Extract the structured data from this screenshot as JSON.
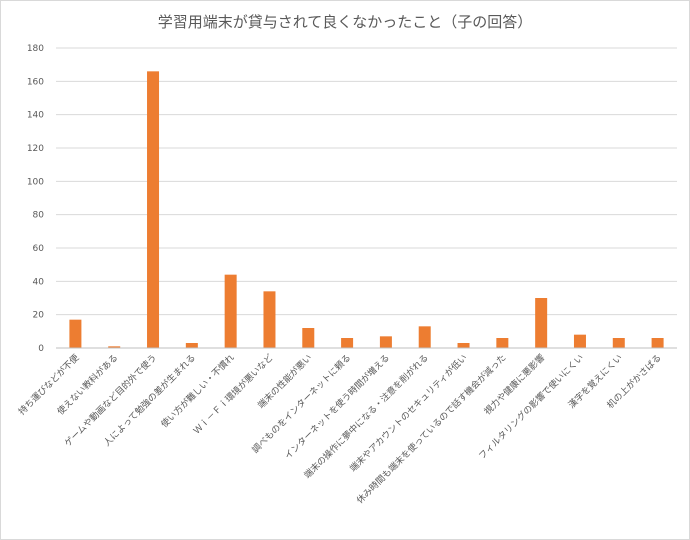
{
  "chart_data": {
    "type": "bar",
    "title": "学習用端末が貸与されて良くなかったこと（子の回答）",
    "xlabel": "",
    "ylabel": "",
    "ylim": [
      0,
      180
    ],
    "yticks": [
      "0",
      "20",
      "40",
      "60",
      "80",
      "100",
      "120",
      "140",
      "160",
      "180"
    ],
    "grid": "horizontal",
    "bar_color": "#ED7D31",
    "categories": [
      "持ち運びなどが不便",
      "使えない教科がある",
      "ゲームや動画など目的外で使う",
      "人によって勉強の差が生まれる",
      "使い方が難しい・不慣れ",
      "Ｗｉ－Ｆｉ環境が悪いなど",
      "端末の性能が悪い",
      "調べものをインターネットに頼る",
      "インターネットを使う時間が増える",
      "端末の操作に夢中になる・注意を削がれる",
      "端末やアカウントのセキュリティが低い",
      "休み時間も端末を使っているので話す機会が減った",
      "視力や健康に悪影響",
      "フィルタリングの影響で使いにくい",
      "漢字を覚えにくい",
      "机の上がかさばる"
    ],
    "values": [
      17,
      1,
      166,
      3,
      44,
      34,
      12,
      6,
      7,
      13,
      3,
      6,
      30,
      8,
      6,
      6
    ]
  }
}
